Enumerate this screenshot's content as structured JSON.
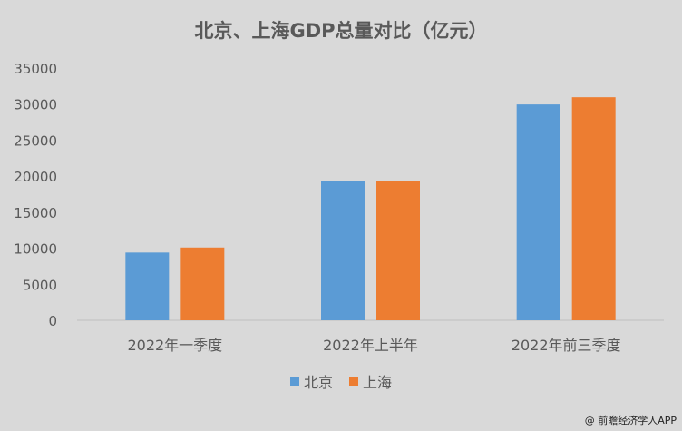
{
  "chart_data": {
    "type": "bar",
    "title": "北京、上海GDP总量对比（亿元）",
    "categories": [
      "2022年一季度",
      "2022年上半年",
      "2022年前三季度"
    ],
    "series": [
      {
        "name": "北京",
        "color": "#5b9bd5",
        "values": [
          9400,
          19350,
          29950
        ]
      },
      {
        "name": "上海",
        "color": "#ed7d31",
        "values": [
          10100,
          19350,
          30950
        ]
      }
    ],
    "ylim": [
      0,
      35000
    ],
    "yticks": [
      0,
      5000,
      10000,
      15000,
      20000,
      25000,
      30000,
      35000
    ],
    "grid": false,
    "legend": "bottom"
  },
  "watermark": "@ 前瞻经济学人APP"
}
